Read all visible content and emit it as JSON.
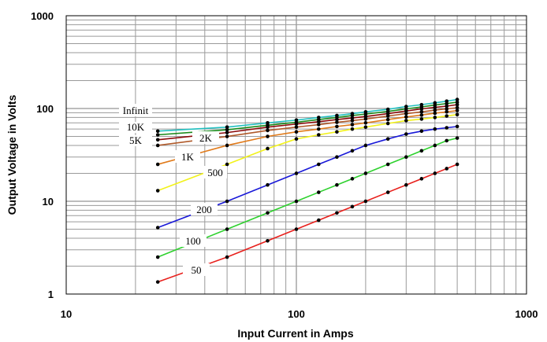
{
  "chart_data": {
    "type": "line",
    "title": "",
    "xlabel": "Input Current in Amps",
    "ylabel": "Output Voltage in Volts",
    "x_scale": "log",
    "y_scale": "log",
    "xlim": [
      10,
      1000
    ],
    "ylim": [
      1,
      1000
    ],
    "grid": true,
    "x_ticks": [
      "10",
      "100",
      "1000"
    ],
    "y_ticks": [
      "1",
      "10",
      "100",
      "1000"
    ],
    "x": [
      25,
      50,
      75,
      100,
      125,
      150,
      175,
      200,
      250,
      300,
      350,
      400,
      450,
      500
    ],
    "series": [
      {
        "name": "50",
        "color": "#e8201c",
        "values": [
          1.35,
          2.5,
          3.75,
          5.0,
          6.25,
          7.5,
          8.75,
          10.0,
          12.5,
          15.0,
          17.5,
          20.0,
          22.5,
          25.0
        ]
      },
      {
        "name": "100",
        "color": "#2ed12e",
        "values": [
          2.5,
          5.0,
          7.5,
          10.0,
          12.5,
          15.0,
          17.5,
          20.0,
          25.0,
          30.0,
          35.0,
          40.0,
          45.0,
          48.0
        ]
      },
      {
        "name": "200",
        "color": "#1818d8",
        "values": [
          5.2,
          10.0,
          15.0,
          20.0,
          25.0,
          30.0,
          35.0,
          40.0,
          47.0,
          53.0,
          57.0,
          60.0,
          62.0,
          64.0
        ]
      },
      {
        "name": "500",
        "color": "#f2f21a",
        "values": [
          13.0,
          25.0,
          37.0,
          47.0,
          52.0,
          56.0,
          60.0,
          63.0,
          69.0,
          74.0,
          77.0,
          80.0,
          83.0,
          86.0
        ]
      },
      {
        "name": "1K",
        "color": "#e07a1a",
        "values": [
          25.0,
          40.0,
          50.0,
          56.0,
          60.0,
          64.0,
          67.0,
          70.0,
          76.0,
          81.0,
          85.0,
          89.0,
          92.0,
          95.0
        ]
      },
      {
        "name": "2K",
        "color": "#b05a2a",
        "values": [
          40.0,
          50.0,
          58.0,
          63.0,
          67.0,
          71.0,
          74.0,
          77.0,
          83.0,
          88.0,
          92.0,
          96.0,
          99.0,
          102.0
        ]
      },
      {
        "name": "5K",
        "color": "#8b0a0a",
        "values": [
          46.0,
          55.0,
          63.0,
          68.0,
          72.0,
          76.0,
          79.0,
          82.0,
          88.0,
          94.0,
          99.0,
          103.0,
          106.0,
          110.0
        ]
      },
      {
        "name": "10K",
        "color": "#1a8a1a",
        "values": [
          52.0,
          59.0,
          66.0,
          71.0,
          76.0,
          80.0,
          84.0,
          87.0,
          93.0,
          99.0,
          104.0,
          109.0,
          113.0,
          117.0
        ]
      },
      {
        "name": "",
        "color": "#22c0c0",
        "values": [
          57.0,
          63.0,
          70.0,
          75.0,
          80.0,
          84.0,
          88.0,
          92.0,
          98.0,
          105.0,
          110.0,
          115.0,
          120.0,
          125.0
        ]
      }
    ],
    "series_labels": [
      {
        "text": "Infinit"
      },
      {
        "text": "10K"
      },
      {
        "text": "5K"
      },
      {
        "text": "2K"
      },
      {
        "text": "1K"
      },
      {
        "text": "500"
      },
      {
        "text": "200"
      },
      {
        "text": "100"
      },
      {
        "text": "50"
      }
    ]
  }
}
